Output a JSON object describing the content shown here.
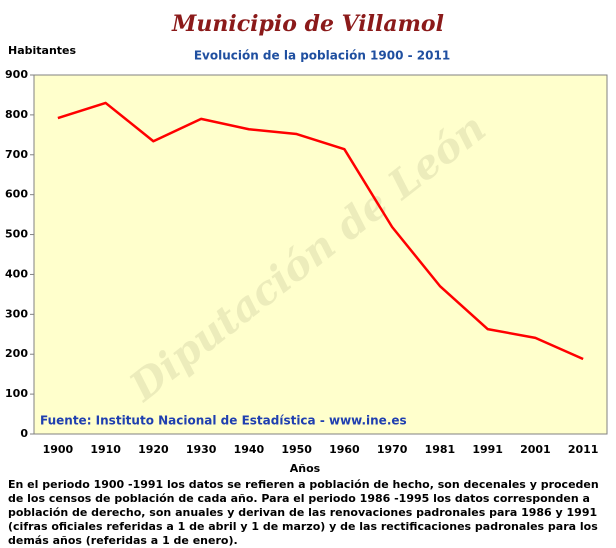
{
  "chart_data": {
    "type": "line",
    "title": "Municipio de Villamol",
    "subtitle": "Evolución de la población 1900 - 2011",
    "y_label": "Habitantes",
    "x_label": "Años",
    "source": "Fuente: Instituto Nacional de Estadística - www.ine.es",
    "watermark": "Diputación de León",
    "note": "En el periodo 1900 -1991 los datos se refieren a población de hecho, son decenales y proceden de los censos de población de cada año. Para el periodo 1986 -1995 los datos corresponden a población de derecho, son anuales y derivan de las renovaciones padronales para 1986 y 1991 (cifras oficiales referidas a 1 de abril y 1 de marzo) y de las rectificaciones padronales para los demás años (referidas a 1 de enero).",
    "categories": [
      "1900",
      "1910",
      "1920",
      "1930",
      "1940",
      "1950",
      "1960",
      "1970",
      "1981",
      "1991",
      "2001",
      "2011"
    ],
    "series": [
      {
        "name": "Habitantes",
        "color": "#ff0000",
        "values": [
          792,
          830,
          734,
          790,
          764,
          752,
          714,
          519,
          371,
          263,
          241,
          188
        ]
      }
    ],
    "ylim": [
      0,
      900
    ],
    "yticks": [
      0,
      100,
      200,
      300,
      400,
      500,
      600,
      700,
      800,
      900
    ],
    "grid": false
  }
}
